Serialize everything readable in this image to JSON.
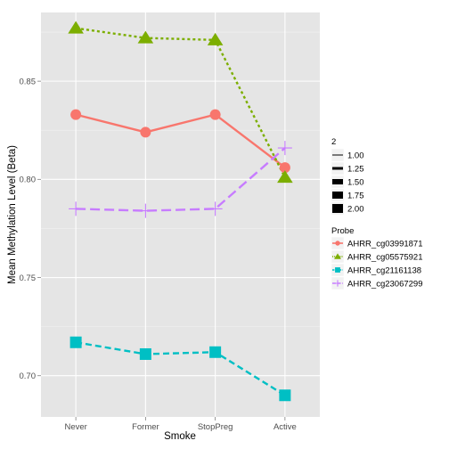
{
  "chart_data": {
    "type": "line",
    "xlabel": "Smoke",
    "ylabel": "Mean Methylation Level (Beta)",
    "categories": [
      "Never",
      "Former",
      "StopPreg",
      "Active"
    ],
    "ylim": [
      0.679,
      0.885
    ],
    "y_ticks": [
      "0.70",
      "0.75",
      "0.80",
      "0.85"
    ],
    "grid": true,
    "legend_placement": "right",
    "size_legend": {
      "title": "2",
      "values": [
        "1.00",
        "1.25",
        "1.50",
        "1.75",
        "2.00"
      ]
    },
    "color_legend_title": "Probe",
    "series": [
      {
        "name": "AHRR_cg03991871",
        "color": "#F8766D",
        "marker": "circle",
        "dash": "solid",
        "values": [
          0.833,
          0.824,
          0.833,
          0.806
        ]
      },
      {
        "name": "AHRR_cg05575921",
        "color": "#7CAE00",
        "marker": "triangle",
        "dash": "dotted",
        "values": [
          0.877,
          0.872,
          0.871,
          0.801
        ]
      },
      {
        "name": "AHRR_cg21161138",
        "color": "#00BFC4",
        "marker": "square",
        "dash": "dashed",
        "values": [
          0.717,
          0.711,
          0.712,
          0.69
        ]
      },
      {
        "name": "AHRR_cg23067299",
        "color": "#C77CFF",
        "marker": "plus",
        "dash": "longdash",
        "values": [
          0.785,
          0.784,
          0.785,
          0.816
        ]
      }
    ]
  }
}
